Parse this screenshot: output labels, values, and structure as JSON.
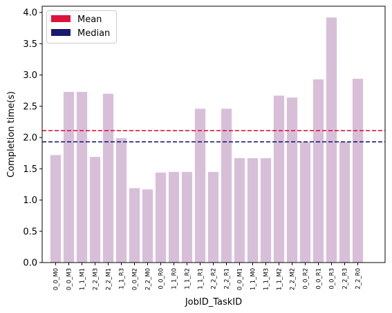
{
  "chart_data": {
    "type": "bar",
    "xlabel": "JobID_TaskID",
    "ylabel": "Completion time(s)",
    "ylim": [
      0,
      4.1
    ],
    "yticks": [
      "0.0",
      "0.5",
      "1.0",
      "1.5",
      "2.0",
      "2.5",
      "3.0",
      "3.5",
      "4.0"
    ],
    "categories": [
      "0_0_M0",
      "0_0_M3",
      "1_1_M1",
      "2_2_M3",
      "2_2_M1",
      "1_1_R3",
      "0_0_M2",
      "2_2_M0",
      "0_0_R0",
      "1_1_R0",
      "1_1_R2",
      "1_1_R1",
      "2_2_R2",
      "2_2_R1",
      "0_0_M1",
      "1_1_M0",
      "1_1_M3",
      "1_1_M2",
      "2_2_M2",
      "0_0_R2",
      "0_0_R1",
      "0_0_R3",
      "2_2_R3",
      "2_2_R0"
    ],
    "values": [
      1.72,
      2.73,
      2.73,
      1.69,
      2.7,
      1.99,
      1.19,
      1.17,
      1.44,
      1.45,
      1.45,
      2.46,
      1.45,
      2.46,
      1.67,
      1.67,
      1.67,
      2.67,
      2.64,
      1.93,
      2.93,
      3.92,
      1.93,
      2.94
    ],
    "bar_color": "#d8bfd8",
    "reference_lines": [
      {
        "name": "Mean",
        "value": 2.11,
        "color": "#dc143c"
      },
      {
        "name": "Median",
        "value": 1.93,
        "color": "#191970"
      }
    ],
    "legend": {
      "placement": "top-left",
      "entries": [
        {
          "label": "Mean",
          "color": "#dc143c"
        },
        {
          "label": "Median",
          "color": "#191970"
        }
      ]
    },
    "grid": false
  }
}
